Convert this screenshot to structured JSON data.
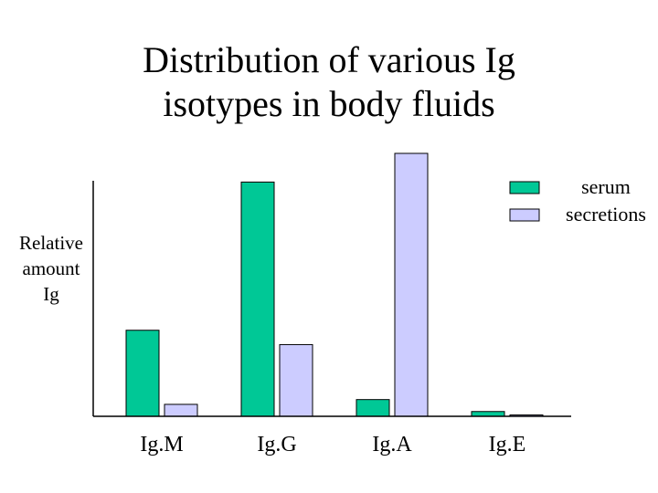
{
  "chart_data": {
    "type": "bar",
    "title": [
      "Distribution of various Ig",
      "isotypes in body fluids"
    ],
    "ylabel": [
      "Relative",
      "amount",
      "Ig"
    ],
    "xlabel": "",
    "categories": [
      "Ig.M",
      "Ig.G",
      "Ig.A",
      "Ig.E"
    ],
    "series": [
      {
        "name": "serum",
        "color": "#00c896",
        "values": [
          36,
          98,
          7,
          2
        ]
      },
      {
        "name": "secretions",
        "color": "#ccccff",
        "values": [
          5,
          30,
          110,
          0.5
        ]
      }
    ],
    "ylim": [
      0,
      110
    ],
    "grid": false,
    "legend_position": "top-right"
  }
}
